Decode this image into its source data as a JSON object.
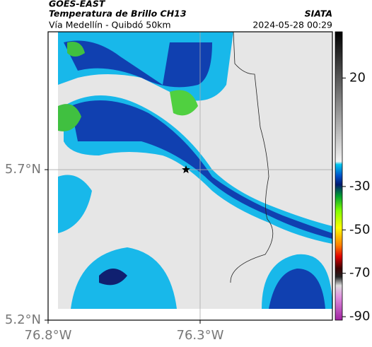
{
  "header": {
    "title": "GOES-EAST",
    "subtitle": "Temperatura de Brillo CH13",
    "route": "Vía Medellín - Quibdó 50km",
    "source": "SIATA",
    "timestamp": "2024-05-28 00:29"
  },
  "map": {
    "xlim": [
      -76.8,
      -75.865
    ],
    "ylim": [
      5.2,
      6.158
    ],
    "xticks": [
      {
        "value": -76.8,
        "label": "76.8°W"
      },
      {
        "value": -76.3,
        "label": "76.3°W"
      }
    ],
    "yticks": [
      {
        "value": 5.2,
        "label": "5.2°N"
      },
      {
        "value": 5.7,
        "label": "5.7°N"
      }
    ],
    "grid": true
  },
  "colorbar": {
    "lim": [
      -91.6,
      41.3
    ],
    "ticks": [
      20,
      -30,
      -50,
      -70,
      -90
    ]
  }
}
